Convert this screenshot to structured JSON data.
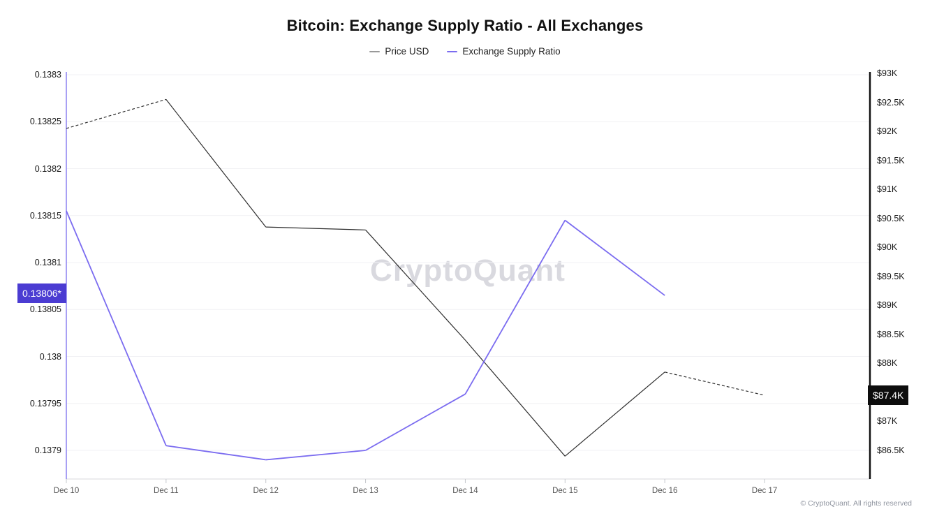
{
  "title": "Bitcoin: Exchange Supply Ratio - All Exchanges",
  "legend": [
    {
      "label": "Price USD",
      "color": "#999999"
    },
    {
      "label": "Exchange Supply Ratio",
      "color": "#7b6cf0"
    }
  ],
  "watermark": "CryptoQuant",
  "footer": "© CryptoQuant. All rights reserved",
  "left_axis": {
    "current_badge": {
      "text": "0.13806*",
      "bg": "#4b3cd2"
    }
  },
  "right_axis": {
    "current_badge": {
      "text": "$87.4K",
      "bg": "#0d0d0d"
    }
  },
  "chart_data": {
    "type": "line",
    "title": "Bitcoin: Exchange Supply Ratio - All Exchanges",
    "x": [
      "Dec 10",
      "Dec 11",
      "Dec 12",
      "Dec 13",
      "Dec 14",
      "Dec 15",
      "Dec 16",
      "Dec 17"
    ],
    "series": [
      {
        "name": "Price USD",
        "axis": "right",
        "unit": "USD thousands",
        "color": "#2e2e2e",
        "values": [
          92.05,
          92.55,
          90.35,
          90.3,
          88.4,
          86.4,
          87.85,
          87.45
        ],
        "current_label": "$87.4K",
        "dashed_segments": [
          [
            0,
            1
          ],
          [
            6,
            7
          ]
        ]
      },
      {
        "name": "Exchange Supply Ratio",
        "axis": "left",
        "color": "#7b6cf0",
        "values": [
          0.138155,
          0.137905,
          0.13789,
          0.1379,
          0.13796,
          0.138145,
          0.138065,
          null
        ],
        "current_label": "0.13806*",
        "dashed_segments": []
      }
    ],
    "left_axis": {
      "tick_values": [
        0.1383,
        0.13825,
        0.1382,
        0.13815,
        0.1381,
        0.13805,
        0.138,
        0.13795,
        0.1379
      ],
      "tick_labels": [
        "0.1383",
        "0.13825",
        "0.1382",
        "0.13815",
        "0.1381",
        "0.13805",
        "0.138",
        "0.13795",
        "0.1379"
      ],
      "current_value": 0.138065
    },
    "right_axis": {
      "tick_values": [
        93,
        92.5,
        92,
        91.5,
        91,
        90.5,
        90,
        89.5,
        89,
        88.5,
        88,
        87,
        86.5
      ],
      "tick_labels": [
        "$93K",
        "$92.5K",
        "$92K",
        "$91.5K",
        "$91K",
        "$90.5K",
        "$90K",
        "$89.5K",
        "$89K",
        "$88.5K",
        "$88K",
        "$87K",
        "$86.5K"
      ],
      "current_value": 87.45
    },
    "grid": "horizontal, at left-axis ticks",
    "legend_position": "top-center"
  }
}
